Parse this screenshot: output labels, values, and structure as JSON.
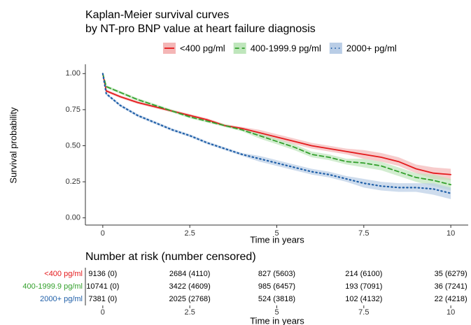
{
  "chart_data": {
    "type": "line",
    "title": "Kaplan-Meier survival curves",
    "subtitle": "by NT-pro BNP value at heart failure diagnosis",
    "xlabel": "Time in years",
    "ylabel": "Survival probability",
    "x": [
      0,
      0.1,
      0.5,
      1,
      1.5,
      2,
      2.5,
      3,
      3.5,
      4,
      4.5,
      5,
      5.5,
      6,
      6.5,
      7,
      7.5,
      8,
      8.5,
      9,
      9.5,
      10
    ],
    "series": [
      {
        "name": "<400 pg/ml",
        "color": "#e41a1c",
        "band_color": "#f4b6b6",
        "dash": "solid",
        "values": [
          1.0,
          0.88,
          0.84,
          0.8,
          0.77,
          0.74,
          0.71,
          0.68,
          0.64,
          0.62,
          0.59,
          0.56,
          0.53,
          0.5,
          0.48,
          0.46,
          0.44,
          0.42,
          0.39,
          0.34,
          0.31,
          0.3
        ],
        "lower": [
          1.0,
          0.87,
          0.83,
          0.79,
          0.76,
          0.73,
          0.7,
          0.67,
          0.63,
          0.61,
          0.57,
          0.54,
          0.51,
          0.48,
          0.46,
          0.44,
          0.41,
          0.39,
          0.36,
          0.31,
          0.27,
          0.26
        ],
        "upper": [
          1.0,
          0.89,
          0.85,
          0.81,
          0.78,
          0.75,
          0.72,
          0.69,
          0.65,
          0.63,
          0.61,
          0.58,
          0.55,
          0.52,
          0.5,
          0.48,
          0.47,
          0.45,
          0.42,
          0.37,
          0.35,
          0.34
        ]
      },
      {
        "name": "400-1999.9 pg/ml",
        "color": "#33a02c",
        "band_color": "#bfe6bc",
        "dash": "dashed",
        "values": [
          1.0,
          0.91,
          0.87,
          0.82,
          0.78,
          0.74,
          0.7,
          0.67,
          0.64,
          0.61,
          0.57,
          0.53,
          0.49,
          0.44,
          0.42,
          0.39,
          0.38,
          0.36,
          0.32,
          0.28,
          0.26,
          0.23
        ],
        "lower": [
          1.0,
          0.9,
          0.86,
          0.81,
          0.77,
          0.73,
          0.69,
          0.66,
          0.63,
          0.6,
          0.55,
          0.51,
          0.47,
          0.42,
          0.4,
          0.37,
          0.35,
          0.33,
          0.29,
          0.25,
          0.22,
          0.19
        ],
        "upper": [
          1.0,
          0.92,
          0.88,
          0.83,
          0.79,
          0.75,
          0.71,
          0.68,
          0.65,
          0.62,
          0.59,
          0.55,
          0.51,
          0.46,
          0.44,
          0.41,
          0.41,
          0.39,
          0.35,
          0.31,
          0.3,
          0.27
        ]
      },
      {
        "name": "2000+ pg/ml",
        "color": "#1f5fa8",
        "band_color": "#b9cde6",
        "dash": "dotted",
        "values": [
          1.0,
          0.86,
          0.78,
          0.71,
          0.66,
          0.61,
          0.57,
          0.52,
          0.48,
          0.44,
          0.41,
          0.38,
          0.35,
          0.32,
          0.3,
          0.27,
          0.24,
          0.22,
          0.21,
          0.21,
          0.2,
          0.17
        ],
        "lower": [
          1.0,
          0.85,
          0.77,
          0.7,
          0.65,
          0.6,
          0.56,
          0.51,
          0.47,
          0.43,
          0.39,
          0.36,
          0.33,
          0.3,
          0.28,
          0.25,
          0.21,
          0.19,
          0.18,
          0.18,
          0.16,
          0.13
        ],
        "upper": [
          1.0,
          0.87,
          0.79,
          0.72,
          0.67,
          0.62,
          0.58,
          0.53,
          0.49,
          0.45,
          0.43,
          0.4,
          0.37,
          0.34,
          0.32,
          0.29,
          0.27,
          0.25,
          0.24,
          0.24,
          0.24,
          0.21
        ]
      }
    ],
    "xlim": [
      -0.5,
      10.5
    ],
    "xticks": [
      0,
      2.5,
      5,
      7.5,
      10
    ],
    "ylim": [
      -0.05,
      1.05
    ],
    "yticks": [
      {
        "value": 0,
        "label": "0.00"
      },
      {
        "value": 0.25,
        "label": "0.25"
      },
      {
        "value": 0.5,
        "label": "0.50"
      },
      {
        "value": 0.75,
        "label": "0.75"
      },
      {
        "value": 1,
        "label": "1.00"
      }
    ],
    "grid": false,
    "legend": "top",
    "risk_table": {
      "title": "Number at risk (number censored)",
      "rows": [
        [
          "9136 (0)",
          "2684 (4110)",
          "827 (5603)",
          "214 (6100)",
          "35 (6279)"
        ],
        [
          "10741 (0)",
          "3422 (4609)",
          "985 (6457)",
          "193 (7091)",
          "36 (7241)"
        ],
        [
          "7381 (0)",
          "2025 (2768)",
          "524 (3818)",
          "102 (4132)",
          "22 (4218)"
        ]
      ]
    }
  }
}
